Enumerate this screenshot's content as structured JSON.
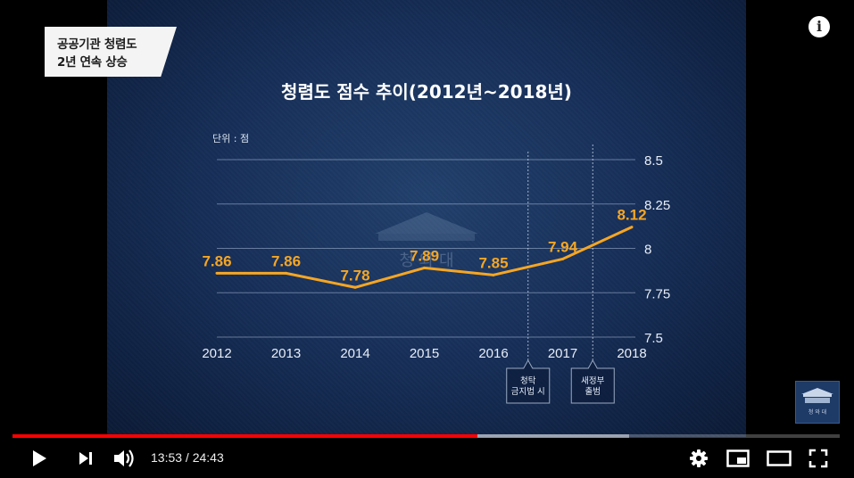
{
  "video": {
    "caption_lines": [
      "공공기관 청렴도",
      "2년 연속 상승"
    ],
    "info_label": "i",
    "channel_logo_text": "청 와 대"
  },
  "player": {
    "current_time": "13:53",
    "duration": "24:43",
    "time_display": "13:53 / 24:43",
    "played_fraction": 0.562,
    "buffered_fraction": 0.745,
    "accent_color": "#ff0000"
  },
  "chart_data": {
    "type": "line",
    "title": "청렴도 점수 추이(2012년~2018년)",
    "unit_label": "단위 : 점",
    "watermark": "청 와 대",
    "x": [
      "2012",
      "2013",
      "2014",
      "2015",
      "2016",
      "2017",
      "2018"
    ],
    "series": [
      {
        "values": [
          7.86,
          7.86,
          7.78,
          7.89,
          7.85,
          7.94,
          8.12
        ],
        "labels": [
          "7.86",
          "7.86",
          "7.78",
          "7.89",
          "7.85",
          "7.94",
          "8.12"
        ],
        "color": "#f6a623"
      }
    ],
    "yticks": [
      8.5,
      8.25,
      8,
      7.75,
      7.5
    ],
    "ytick_labels": [
      "8.5",
      "8.25",
      "8",
      "7.75",
      "7.5"
    ],
    "ylim": [
      7.5,
      8.5
    ],
    "grid": true,
    "annotations": [
      {
        "after_x": "2016",
        "lines": [
          "청탁",
          "금지법 시"
        ]
      },
      {
        "after_x": "2017",
        "lines": [
          "새정부",
          "출범"
        ]
      }
    ]
  }
}
